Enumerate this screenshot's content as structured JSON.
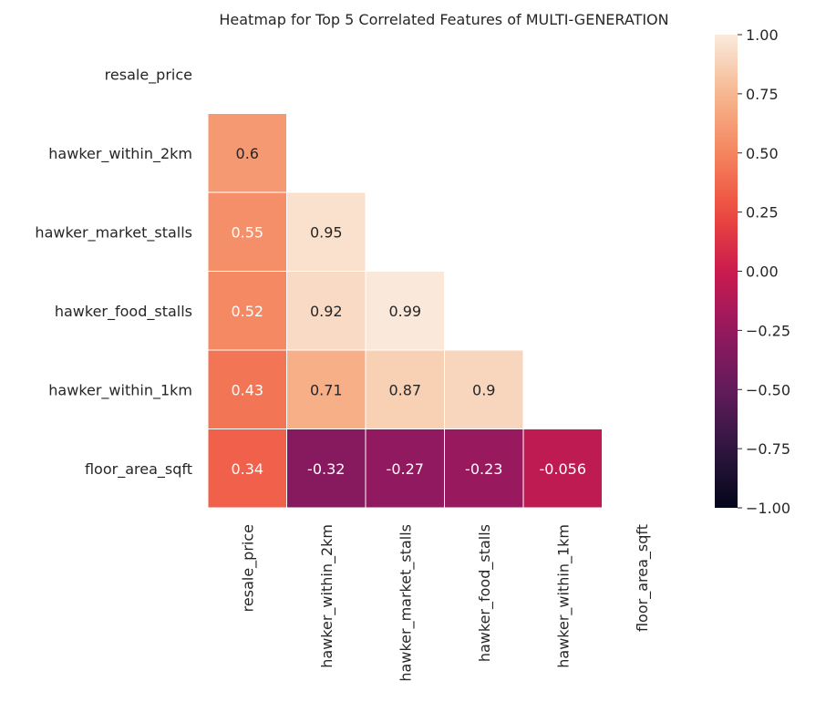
{
  "chart_data": {
    "type": "heatmap",
    "title": "Heatmap for Top 5 Correlated Features of MULTI-GENERATION",
    "row_labels": [
      "resale_price",
      "hawker_within_2km",
      "hawker_market_stalls",
      "hawker_food_stalls",
      "hawker_within_1km",
      "floor_area_sqft"
    ],
    "col_labels": [
      "resale_price",
      "hawker_within_2km",
      "hawker_market_stalls",
      "hawker_food_stalls",
      "hawker_within_1km",
      "floor_area_sqft"
    ],
    "mask": "upper-triangle-including-diagonal",
    "values": [
      [
        null,
        null,
        null,
        null,
        null,
        null
      ],
      [
        0.6,
        null,
        null,
        null,
        null,
        null
      ],
      [
        0.55,
        0.95,
        null,
        null,
        null,
        null
      ],
      [
        0.52,
        0.92,
        0.99,
        null,
        null,
        null
      ],
      [
        0.43,
        0.71,
        0.87,
        0.9,
        null,
        null
      ],
      [
        0.34,
        -0.32,
        -0.27,
        -0.23,
        -0.056,
        null
      ]
    ],
    "annotations": [
      [
        null,
        null,
        null,
        null,
        null,
        null
      ],
      [
        "0.6",
        null,
        null,
        null,
        null,
        null
      ],
      [
        "0.55",
        "0.95",
        null,
        null,
        null,
        null
      ],
      [
        "0.52",
        "0.92",
        "0.99",
        null,
        null,
        null
      ],
      [
        "0.43",
        "0.71",
        "0.87",
        "0.9",
        null,
        null
      ],
      [
        "0.34",
        "-0.32",
        "-0.27",
        "-0.23",
        "-0.056",
        null
      ]
    ],
    "colorscale": "rocket",
    "vmin": -1,
    "vmax": 1,
    "colorbar_ticks": [
      1.0,
      0.75,
      0.5,
      0.25,
      0.0,
      -0.25,
      -0.5,
      -0.75,
      -1.0
    ],
    "colorbar_tick_labels": [
      "1.00",
      "0.75",
      "0.50",
      "0.25",
      "0.00",
      "−0.25",
      "−0.50",
      "−0.75",
      "−1.00"
    ],
    "grid": false,
    "colorbar_position": "right"
  }
}
